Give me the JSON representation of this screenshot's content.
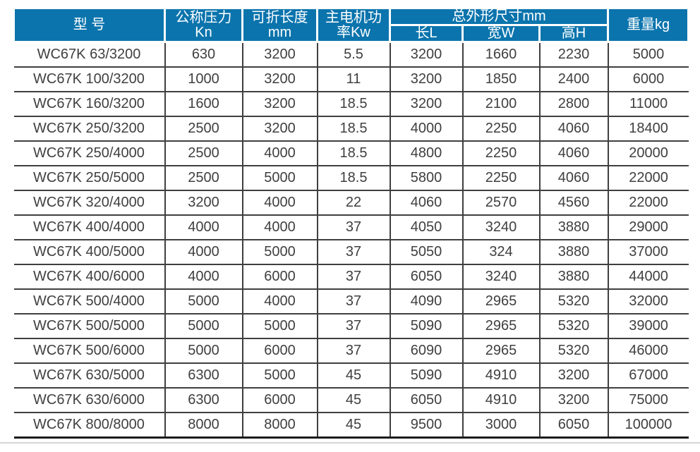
{
  "colors": {
    "header_bg": "#0b74ad",
    "header_text": "#ffffff",
    "grid_line": "#3f3f3f",
    "data_text": "#3f3f3f"
  },
  "table": {
    "header": {
      "model": "型 号",
      "pressure_line1": "公称压力",
      "pressure_line2": "Kn",
      "length_line1": "可折长度",
      "length_line2": "mm",
      "motor_line1": "主电机功",
      "motor_line2": "率Kw",
      "dims_group": "总外形尺寸mm",
      "dim_length": "长L",
      "dim_width": "宽W",
      "dim_height": "高H",
      "weight": "重量kg"
    },
    "rows": [
      [
        "WC67K 63/3200",
        "630",
        "3200",
        "5.5",
        "3200",
        "1660",
        "2230",
        "5000"
      ],
      [
        "WC67K 100/3200",
        "1000",
        "3200",
        "11",
        "3200",
        "1850",
        "2400",
        "6000"
      ],
      [
        "WC67K 160/3200",
        "1600",
        "3200",
        "18.5",
        "3200",
        "2100",
        "2800",
        "11000"
      ],
      [
        "WC67K 250/3200",
        "2500",
        "3200",
        "18.5",
        "4000",
        "2250",
        "4060",
        "18400"
      ],
      [
        "WC67K 250/4000",
        "2500",
        "4000",
        "18.5",
        "4800",
        "2250",
        "4060",
        "20000"
      ],
      [
        "WC67K 250/5000",
        "2500",
        "5000",
        "18.5",
        "5800",
        "2250",
        "4060",
        "22000"
      ],
      [
        "WC67K 320/4000",
        "3200",
        "4000",
        "22",
        "4060",
        "2570",
        "4560",
        "22000"
      ],
      [
        "WC67K 400/4000",
        "4000",
        "4000",
        "37",
        "4050",
        "3240",
        "3880",
        "29000"
      ],
      [
        "WC67K 400/5000",
        "4000",
        "5000",
        "37",
        "5050",
        "324",
        "3880",
        "37000"
      ],
      [
        "WC67K 400/6000",
        "4000",
        "6000",
        "37",
        "6050",
        "3240",
        "3880",
        "44000"
      ],
      [
        "WC67K 500/4000",
        "5000",
        "4000",
        "37",
        "4090",
        "2965",
        "5320",
        "32000"
      ],
      [
        "WC67K 500/5000",
        "5000",
        "5000",
        "37",
        "5090",
        "2965",
        "5320",
        "39000"
      ],
      [
        "WC67K 500/6000",
        "5000",
        "6000",
        "37",
        "6090",
        "2965",
        "5320",
        "46000"
      ],
      [
        "WC67K 630/5000",
        "6300",
        "5000",
        "45",
        "5090",
        "4910",
        "3200",
        "67000"
      ],
      [
        "WC67K 630/6000",
        "6300",
        "6000",
        "45",
        "6050",
        "4910",
        "3200",
        "75000"
      ],
      [
        "WC67K 800/8000",
        "8000",
        "8000",
        "45",
        "9500",
        "3000",
        "6050",
        "100000"
      ]
    ]
  }
}
